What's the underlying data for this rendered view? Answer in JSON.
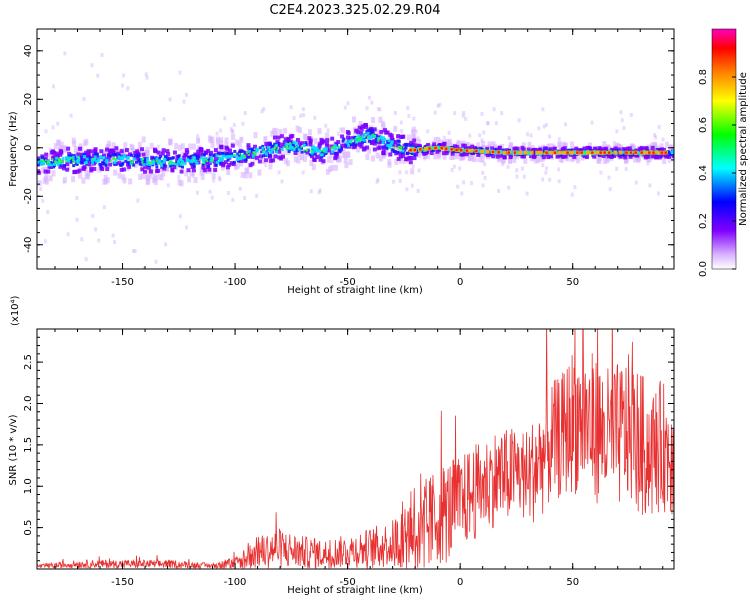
{
  "title": "C2E4.2023.325.02.29.R04",
  "chart_data": [
    {
      "type": "heatmap",
      "title": "C2E4.2023.325.02.29.R04",
      "xlabel": "Height of straight line (km)",
      "ylabel": "Frequency (Hz)",
      "xlim": [
        -188,
        95
      ],
      "ylim": [
        -50,
        49
      ],
      "xticks": [
        -150,
        -100,
        -50,
        0,
        50
      ],
      "yticks": [
        -40,
        -20,
        0,
        20,
        40
      ],
      "colorbar": {
        "label": "Normalized spectral amplitude",
        "range": [
          0.0,
          1.0
        ],
        "ticks": [
          "0.0",
          "0.2",
          "0.4",
          "0.6",
          "0.8"
        ],
        "colors": [
          "#ffffff",
          "#d9b3ff",
          "#8000ff",
          "#0000ff",
          "#00ffff",
          "#00ff00",
          "#ffff00",
          "#ff8000",
          "#ff0000",
          "#ff00c0"
        ]
      },
      "ridge": {
        "x": [
          -188,
          -170,
          -150,
          -130,
          -110,
          -90,
          -75,
          -60,
          -50,
          -40,
          -30,
          -22,
          -10,
          0,
          20,
          40,
          60,
          80,
          95
        ],
        "y": [
          -6,
          -5,
          -5,
          -6,
          -5,
          -2,
          1,
          -2,
          2,
          5,
          1,
          -1,
          0,
          -1,
          -2,
          -2,
          -2,
          -2,
          -2
        ]
      }
    },
    {
      "type": "line",
      "xlabel": "Height of straight line (km)",
      "ylabel": "SNR (10 * v/v)",
      "y_multiplier": "(x10⁴)",
      "xlim": [
        -188,
        95
      ],
      "ylim": [
        0,
        2.9
      ],
      "xticks": [
        -150,
        -100,
        -50,
        0,
        50
      ],
      "yticks": [
        0.5,
        1.0,
        1.5,
        2.0,
        2.5
      ],
      "line_color": "#e83030",
      "envelope": {
        "x": [
          -188,
          -170,
          -150,
          -130,
          -110,
          -100,
          -90,
          -80,
          -70,
          -60,
          -50,
          -40,
          -30,
          -25,
          -20,
          -15,
          -10,
          -5,
          0,
          5,
          10,
          15,
          20,
          25,
          30,
          35,
          40,
          45,
          50,
          55,
          60,
          65,
          70,
          75,
          80,
          85,
          90,
          95
        ],
        "mean": [
          0.03,
          0.06,
          0.06,
          0.06,
          0.04,
          0.06,
          0.2,
          0.25,
          0.2,
          0.18,
          0.22,
          0.25,
          0.3,
          0.4,
          0.6,
          0.5,
          0.65,
          0.7,
          0.8,
          0.9,
          1.0,
          1.1,
          1.1,
          1.2,
          1.1,
          1.3,
          1.5,
          1.6,
          1.8,
          1.8,
          1.7,
          1.6,
          1.6,
          1.7,
          1.5,
          1.4,
          1.5,
          1.3
        ],
        "spread": [
          0.02,
          0.05,
          0.05,
          0.05,
          0.03,
          0.08,
          0.2,
          0.25,
          0.2,
          0.18,
          0.2,
          0.25,
          0.3,
          0.45,
          0.7,
          0.6,
          0.6,
          0.65,
          0.55,
          0.6,
          0.55,
          0.6,
          0.6,
          0.55,
          0.6,
          0.7,
          0.75,
          0.75,
          0.9,
          0.9,
          0.9,
          0.85,
          0.9,
          0.9,
          0.9,
          0.8,
          0.8,
          0.7
        ]
      }
    }
  ]
}
